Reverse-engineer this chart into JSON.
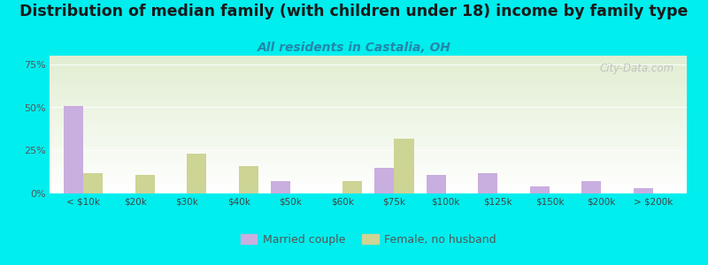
{
  "title": "Distribution of median family (with children under 18) income by family type",
  "subtitle": "All residents in Castalia, OH",
  "categories": [
    "< $10k",
    "$20k",
    "$30k",
    "$40k",
    "$50k",
    "$60k",
    "$75k",
    "$100k",
    "$125k",
    "$150k",
    "$200k",
    "> $200k"
  ],
  "married_couple": [
    51,
    0,
    0,
    0,
    7,
    0,
    15,
    11,
    12,
    4,
    7,
    3
  ],
  "female_no_husband": [
    12,
    11,
    23,
    16,
    0,
    7,
    32,
    0,
    0,
    0,
    0,
    0
  ],
  "married_color": "#c9aee0",
  "female_color": "#cdd494",
  "background_color": "#00eeee",
  "ylabel_color": "#555555",
  "ytick_labels": [
    "0%",
    "25%",
    "50%",
    "75%"
  ],
  "ytick_values": [
    0,
    25,
    50,
    75
  ],
  "ylim": [
    0,
    80
  ],
  "bar_width": 0.38,
  "title_fontsize": 12.5,
  "subtitle_fontsize": 10,
  "subtitle_color": "#2288aa",
  "legend_married": "Married couple",
  "legend_female": "Female, no husband",
  "watermark": "City-Data.com"
}
